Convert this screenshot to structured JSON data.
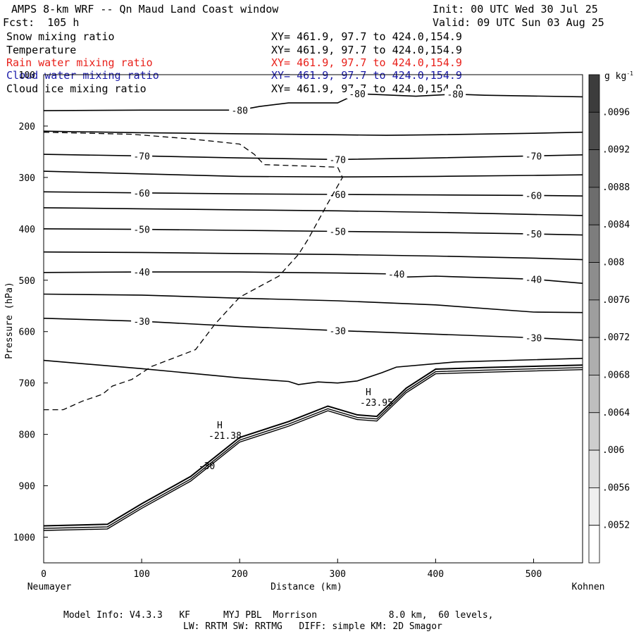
{
  "header": {
    "title": "AMPS 8-km WRF -- Qn Maud Land Coast window",
    "init": "Init: 00 UTC Wed 30 Jul 25",
    "fcst": "Fcst:  105 h",
    "valid": "Valid: 09 UTC Sun 03 Aug 25"
  },
  "fields": [
    {
      "name": "Snow mixing ratio",
      "xy": "XY= 461.9, 97.7 to 424.0,154.9",
      "color": "#000000"
    },
    {
      "name": "Temperature",
      "xy": "XY= 461.9, 97.7 to 424.0,154.9",
      "color": "#000000"
    },
    {
      "name": "Rain water mixing ratio",
      "xy": "XY= 461.9, 97.7 to 424.0,154.9",
      "color": "#e8201a"
    },
    {
      "name": "Cloud water mixing ratio",
      "xy": "XY= 461.9, 97.7 to 424.0,154.9",
      "color": "#1a1aa8"
    },
    {
      "name": "Cloud ice mixing ratio",
      "xy": "XY= 461.9, 97.7 to 424.0,154.9",
      "color": "#000000"
    }
  ],
  "footer": {
    "line1": "Model Info: V4.3.3   KF      MYJ PBL  Morrison             8.0 km,  60 levels,",
    "line2": "LW: RRTM SW: RRTMG   DIFF: simple KM: 2D Smagor"
  },
  "chart_data": {
    "type": "line",
    "xlabel": "Distance (km)",
    "ylabel": "Pressure (hPa)",
    "xlim": [
      0,
      550
    ],
    "ylim": [
      1050,
      100
    ],
    "x_ticks": [
      0,
      100,
      200,
      300,
      400,
      500
    ],
    "y_ticks": [
      100,
      200,
      300,
      400,
      500,
      600,
      700,
      800,
      900,
      1000
    ],
    "x_endpoints": {
      "left": "Neumayer",
      "right": "Kohnen"
    },
    "colorbar": {
      "unit": "g kg",
      "unit_exp": "-1",
      "ticks": [
        ".0096",
        ".0092",
        ".0088",
        ".0084",
        ".008",
        ".0076",
        ".0072",
        ".0068",
        ".0064",
        ".006",
        ".0056",
        ".0052"
      ]
    },
    "isotherms": [
      {
        "label": "-80",
        "points": [
          [
            0,
            170
          ],
          [
            100,
            169
          ],
          [
            200,
            169
          ],
          [
            220,
            162
          ],
          [
            250,
            155
          ],
          [
            300,
            155
          ],
          [
            320,
            137
          ],
          [
            380,
            142
          ],
          [
            420,
            138
          ],
          [
            450,
            140
          ],
          [
            550,
            143
          ]
        ]
      },
      {
        "label": "",
        "points": [
          [
            0,
            210
          ],
          [
            100,
            213
          ],
          [
            200,
            215
          ],
          [
            300,
            217
          ],
          [
            350,
            218
          ],
          [
            400,
            217
          ],
          [
            500,
            214
          ],
          [
            550,
            212
          ]
        ]
      },
      {
        "label": "-70",
        "points": [
          [
            0,
            255
          ],
          [
            100,
            258
          ],
          [
            200,
            262
          ],
          [
            300,
            265
          ],
          [
            400,
            262
          ],
          [
            500,
            258
          ],
          [
            550,
            256
          ]
        ]
      },
      {
        "label": "",
        "points": [
          [
            0,
            288
          ],
          [
            100,
            293
          ],
          [
            200,
            298
          ],
          [
            300,
            299
          ],
          [
            400,
            298
          ],
          [
            500,
            296
          ],
          [
            550,
            295
          ]
        ]
      },
      {
        "label": "-60",
        "points": [
          [
            0,
            328
          ],
          [
            100,
            330
          ],
          [
            200,
            332
          ],
          [
            300,
            333
          ],
          [
            400,
            334
          ],
          [
            500,
            335
          ],
          [
            550,
            336
          ]
        ]
      },
      {
        "label": "",
        "points": [
          [
            0,
            359
          ],
          [
            100,
            361
          ],
          [
            200,
            363
          ],
          [
            300,
            365
          ],
          [
            400,
            368
          ],
          [
            500,
            372
          ],
          [
            550,
            374
          ]
        ]
      },
      {
        "label": "-50",
        "points": [
          [
            0,
            400
          ],
          [
            100,
            401
          ],
          [
            200,
            403
          ],
          [
            300,
            405
          ],
          [
            400,
            407
          ],
          [
            500,
            410
          ],
          [
            550,
            412
          ]
        ]
      },
      {
        "label": "",
        "points": [
          [
            0,
            445
          ],
          [
            100,
            446
          ],
          [
            200,
            448
          ],
          [
            300,
            450
          ],
          [
            400,
            453
          ],
          [
            500,
            457
          ],
          [
            550,
            460
          ]
        ]
      },
      {
        "label": "-40",
        "points": [
          [
            0,
            485
          ],
          [
            100,
            484
          ],
          [
            200,
            484
          ],
          [
            300,
            486
          ],
          [
            360,
            488
          ],
          [
            365,
            494
          ],
          [
            400,
            492
          ],
          [
            500,
            498
          ],
          [
            550,
            506
          ]
        ]
      },
      {
        "label": "",
        "points": [
          [
            0,
            527
          ],
          [
            100,
            529
          ],
          [
            200,
            535
          ],
          [
            300,
            540
          ],
          [
            400,
            548
          ],
          [
            500,
            562
          ],
          [
            550,
            563
          ]
        ]
      },
      {
        "label": "-30",
        "points": [
          [
            0,
            574
          ],
          [
            100,
            580
          ],
          [
            200,
            590
          ],
          [
            300,
            598
          ],
          [
            400,
            605
          ],
          [
            500,
            612
          ],
          [
            550,
            617
          ]
        ]
      },
      {
        "label": "",
        "points": [
          [
            0,
            656
          ],
          [
            100,
            672
          ],
          [
            200,
            690
          ],
          [
            250,
            697
          ],
          [
            260,
            703
          ],
          [
            280,
            698
          ],
          [
            300,
            700
          ],
          [
            320,
            696
          ],
          [
            345,
            680
          ],
          [
            360,
            669
          ],
          [
            420,
            659
          ],
          [
            550,
            652
          ]
        ]
      }
    ],
    "snow_dashed": [
      [
        0,
        212
      ],
      [
        90,
        216
      ],
      [
        150,
        225
      ],
      [
        200,
        235
      ],
      [
        215,
        255
      ],
      [
        225,
        275
      ],
      [
        300,
        280
      ],
      [
        305,
        300
      ],
      [
        290,
        350
      ],
      [
        270,
        420
      ],
      [
        260,
        450
      ],
      [
        240,
        492
      ],
      [
        200,
        533
      ],
      [
        175,
        585
      ],
      [
        155,
        635
      ],
      [
        110,
        668
      ],
      [
        90,
        693
      ],
      [
        70,
        706
      ],
      [
        60,
        722
      ],
      [
        40,
        735
      ],
      [
        20,
        752
      ],
      [
        0,
        752
      ]
    ],
    "surface": [
      [
        0,
        978
      ],
      [
        65,
        975
      ],
      [
        100,
        935
      ],
      [
        150,
        882
      ],
      [
        200,
        806
      ],
      [
        250,
        775
      ],
      [
        290,
        745
      ],
      [
        320,
        762
      ],
      [
        340,
        765
      ],
      [
        370,
        710
      ],
      [
        400,
        673
      ],
      [
        450,
        670
      ],
      [
        550,
        665
      ]
    ]
  }
}
